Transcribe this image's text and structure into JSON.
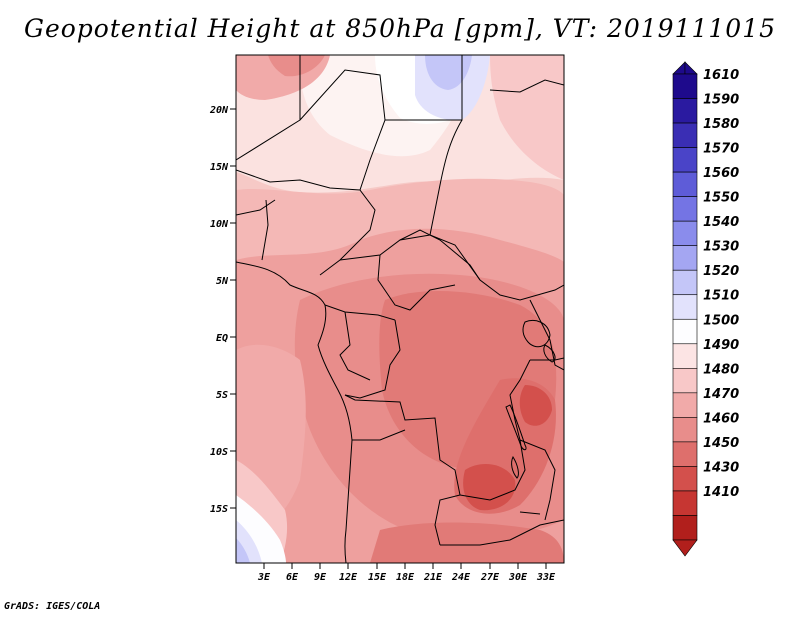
{
  "map": {
    "title": "Geopotential Height at 850hPa [gpm], VT: 2019111015",
    "variable": "Geopotential Height",
    "level": "850hPa",
    "units": "gpm",
    "valid_time": "2019111015",
    "credit": "GrADS: IGES/COLA",
    "lat_ticks": [
      "20N",
      "15N",
      "10N",
      "5N",
      "EQ",
      "5S",
      "10S",
      "15S"
    ],
    "lon_ticks": [
      "3E",
      "6E",
      "9E",
      "12E",
      "15E",
      "18E",
      "21E",
      "24E",
      "27E",
      "30E",
      "33E"
    ]
  },
  "colorbar": {
    "labels": [
      "1610",
      "1590",
      "1580",
      "1570",
      "1560",
      "1550",
      "1540",
      "1530",
      "1520",
      "1510",
      "1500",
      "1490",
      "1480",
      "1470",
      "1460",
      "1450",
      "1430",
      "1410"
    ],
    "colors": [
      "#1e0a8c",
      "#2a1aa0",
      "#3a2eb4",
      "#4a44c8",
      "#5e5cd8",
      "#7474e4",
      "#8a8cec",
      "#a4a6f2",
      "#c4c6f8",
      "#e2e2fc",
      "#fdfdff",
      "#fce4e4",
      "#f8c8c8",
      "#f1aaa9",
      "#e88d8b",
      "#de6f6c",
      "#d3504c",
      "#c63632",
      "#b11f1c"
    ]
  },
  "colors": {
    "background": "#ffffff",
    "border": "#000000"
  }
}
